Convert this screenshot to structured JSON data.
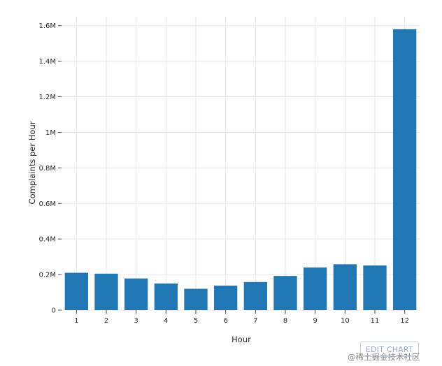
{
  "chart_data": {
    "type": "bar",
    "title": "",
    "xlabel": "Hour",
    "ylabel": "Complaints per Hour",
    "categories": [
      "1",
      "2",
      "3",
      "4",
      "5",
      "6",
      "7",
      "8",
      "9",
      "10",
      "11",
      "12"
    ],
    "series": [
      {
        "values": [
          210000,
          205000,
          178000,
          150000,
          120000,
          138000,
          158000,
          192000,
          240000,
          258000,
          251000,
          1580000
        ]
      }
    ],
    "ylim": [
      0,
      1650000
    ],
    "yticks": [
      0,
      200000,
      400000,
      600000,
      800000,
      1000000,
      1200000,
      1400000,
      1600000
    ],
    "ytick_labels": [
      "0",
      "0.2M",
      "0.4M",
      "0.6M",
      "0.8M",
      "1M",
      "1.2M",
      "1.4M",
      "1.6M"
    ],
    "grid": true,
    "legend": "none",
    "colors": {
      "bar": "#1f77b4",
      "grid": "#e6e6e6",
      "text": "#2a2a2a"
    }
  },
  "edit_link": {
    "label": "EDIT CHART"
  },
  "watermark": {
    "text": "@稀土掘金技术社区"
  }
}
